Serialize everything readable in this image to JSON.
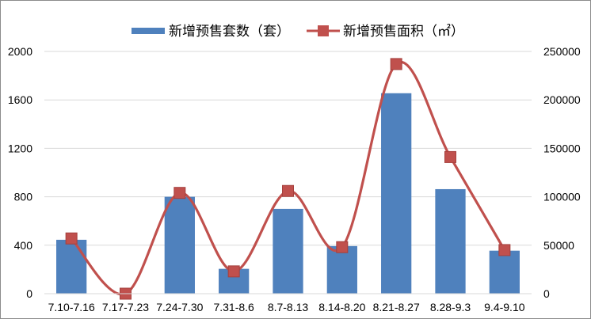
{
  "chart_data": {
    "type": "bar",
    "categories": [
      "7.10-7.16",
      "7.17-7.23",
      "7.24-7.30",
      "7.31-8.6",
      "8.7-8.13",
      "8.14-8.20",
      "8.21-8.27",
      "8.28-9.3",
      "9.4-9.10"
    ],
    "series": [
      {
        "name": "新增预售套数（套）",
        "type": "bar",
        "axis": "left",
        "color": "#4f81bd",
        "values": [
          445,
          0,
          800,
          205,
          700,
          393,
          1655,
          863,
          355
        ]
      },
      {
        "name": "新增预售面积（㎡）",
        "type": "line",
        "axis": "right",
        "color": "#c0504d",
        "smooth": true,
        "marker": "square",
        "values": [
          57000,
          0,
          104000,
          23000,
          106000,
          48000,
          237000,
          141000,
          45000
        ]
      }
    ],
    "y_left": {
      "min": 0,
      "max": 2000,
      "ticks": [
        0,
        400,
        800,
        1200,
        1600,
        2000
      ],
      "tick_labels": [
        "0",
        "400",
        "800",
        "1200",
        "1600",
        "2000"
      ]
    },
    "y_right": {
      "min": 0,
      "max": 250000,
      "ticks": [
        0,
        50000,
        100000,
        150000,
        200000,
        250000
      ],
      "tick_labels": [
        "0",
        "50000",
        "100000",
        "150000",
        "200000",
        "250000"
      ]
    },
    "grid": true,
    "legend_position": "top"
  }
}
